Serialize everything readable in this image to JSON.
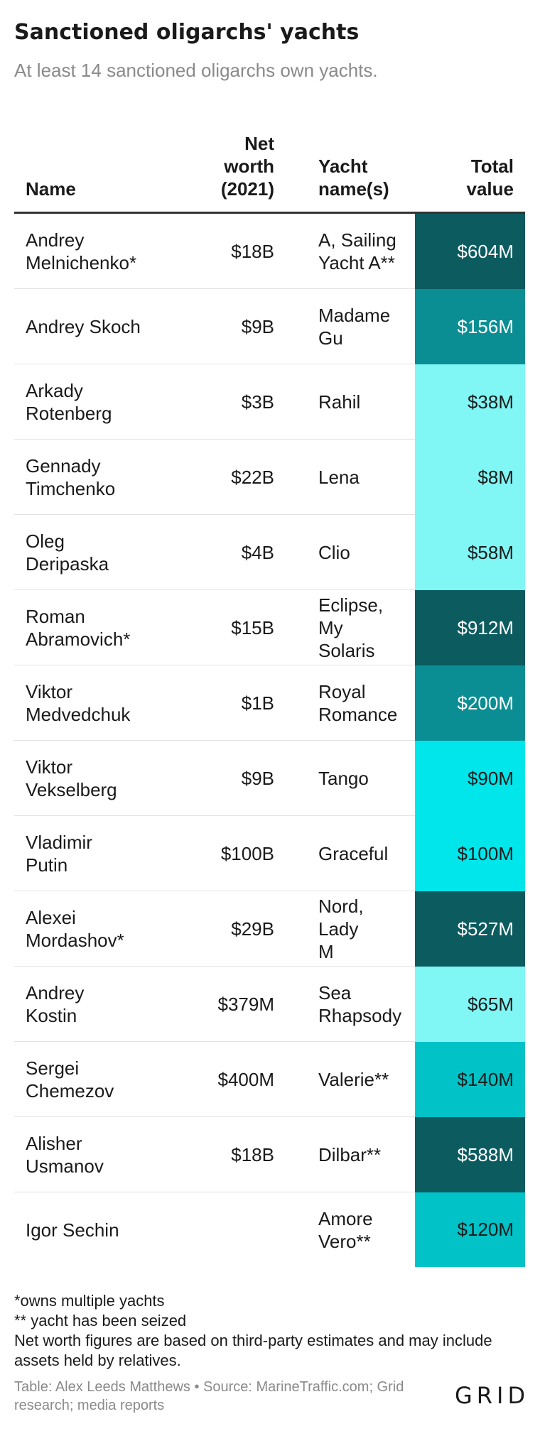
{
  "title": "Sanctioned oligarchs' yachts",
  "subtitle": "At least 14 sanctioned oligarchs own yachts.",
  "colors": {
    "tier_900_plus": "#0b5b5f",
    "tier_500": "#0b5b5f",
    "tier_200": "#0a8e93",
    "tier_150": "#0a8e93",
    "tier_100": "#00e6eb",
    "tier_90": "#00e6eb",
    "tier_low": "#80f6f5",
    "tier_120_140": "#00c2c7"
  },
  "chart_data": {
    "type": "table",
    "columns": [
      "Name",
      "Net worth (2021)",
      "Yacht name(s)",
      "Total value"
    ],
    "header_lines": {
      "name": [
        "Name"
      ],
      "worth": [
        "Net",
        "worth",
        "(2021)"
      ],
      "yacht": [
        "Yacht",
        "name(s)"
      ],
      "value": [
        "Total",
        "value"
      ]
    },
    "rows": [
      {
        "name": "Andrey Melnichenko*",
        "name_lines": [
          "Andrey",
          "Melnichenko*"
        ],
        "worth": "$18B",
        "yacht_lines": [
          "A, Sailing",
          "Yacht A**"
        ],
        "value": "$604M",
        "value_num": 604,
        "bg": "#0b5b5f",
        "fg": "#ffffff"
      },
      {
        "name": "Andrey Skoch",
        "name_lines": [
          "Andrey Skoch"
        ],
        "worth": "$9B",
        "yacht_lines": [
          "Madame",
          "Gu"
        ],
        "value": "$156M",
        "value_num": 156,
        "bg": "#0a8e93",
        "fg": "#ffffff"
      },
      {
        "name": "Arkady Rotenberg",
        "name_lines": [
          "Arkady",
          "Rotenberg"
        ],
        "worth": "$3B",
        "yacht_lines": [
          "Rahil"
        ],
        "value": "$38M",
        "value_num": 38,
        "bg": "#80f6f5",
        "fg": "#1a1a1a"
      },
      {
        "name": "Gennady Timchenko",
        "name_lines": [
          "Gennady",
          "Timchenko"
        ],
        "worth": "$22B",
        "yacht_lines": [
          "Lena"
        ],
        "value": "$8M",
        "value_num": 8,
        "bg": "#80f6f5",
        "fg": "#1a1a1a"
      },
      {
        "name": "Oleg Deripaska",
        "name_lines": [
          "Oleg",
          "Deripaska"
        ],
        "worth": "$4B",
        "yacht_lines": [
          "Clio"
        ],
        "value": "$58M",
        "value_num": 58,
        "bg": "#80f6f5",
        "fg": "#1a1a1a"
      },
      {
        "name": "Roman Abramovich*",
        "name_lines": [
          "Roman",
          "Abramovich*"
        ],
        "worth": "$15B",
        "yacht_lines": [
          "Eclipse,",
          "My Solaris"
        ],
        "value": "$912M",
        "value_num": 912,
        "bg": "#0b5b5f",
        "fg": "#ffffff"
      },
      {
        "name": "Viktor Medvedchuk",
        "name_lines": [
          "Viktor",
          "Medvedchuk"
        ],
        "worth": "$1B",
        "yacht_lines": [
          "Royal",
          "Romance"
        ],
        "value": "$200M",
        "value_num": 200,
        "bg": "#0a8e93",
        "fg": "#ffffff"
      },
      {
        "name": "Viktor Vekselberg",
        "name_lines": [
          "Viktor",
          "Vekselberg"
        ],
        "worth": "$9B",
        "yacht_lines": [
          "Tango"
        ],
        "value": "$90M",
        "value_num": 90,
        "bg": "#00e6eb",
        "fg": "#1a1a1a"
      },
      {
        "name": "Vladimir Putin",
        "name_lines": [
          "Vladimir",
          "Putin"
        ],
        "worth": "$100B",
        "yacht_lines": [
          "Graceful"
        ],
        "value": "$100M",
        "value_num": 100,
        "bg": "#00e6eb",
        "fg": "#1a1a1a"
      },
      {
        "name": "Alexei Mordashov*",
        "name_lines": [
          "Alexei",
          "Mordashov*"
        ],
        "worth": "$29B",
        "yacht_lines": [
          "Nord, Lady",
          "M"
        ],
        "value": "$527M",
        "value_num": 527,
        "bg": "#0b5b5f",
        "fg": "#ffffff"
      },
      {
        "name": "Andrey Kostin",
        "name_lines": [
          "Andrey",
          "Kostin"
        ],
        "worth": "$379M",
        "yacht_lines": [
          "Sea",
          "Rhapsody"
        ],
        "value": "$65M",
        "value_num": 65,
        "bg": "#80f6f5",
        "fg": "#1a1a1a"
      },
      {
        "name": "Sergei Chemezov",
        "name_lines": [
          "Sergei",
          "Chemezov"
        ],
        "worth": "$400M",
        "yacht_lines": [
          "Valerie**"
        ],
        "value": "$140M",
        "value_num": 140,
        "bg": "#00c2c7",
        "fg": "#1a1a1a"
      },
      {
        "name": "Alisher Usmanov",
        "name_lines": [
          "Alisher",
          "Usmanov"
        ],
        "worth": "$18B",
        "yacht_lines": [
          "Dilbar**"
        ],
        "value": "$588M",
        "value_num": 588,
        "bg": "#0b5b5f",
        "fg": "#ffffff"
      },
      {
        "name": "Igor Sechin",
        "name_lines": [
          "Igor Sechin"
        ],
        "worth": "",
        "yacht_lines": [
          "Amore",
          "Vero**"
        ],
        "value": "$120M",
        "value_num": 120,
        "bg": "#00c2c7",
        "fg": "#1a1a1a"
      }
    ]
  },
  "notes": [
    "*owns multiple yachts",
    "** yacht has been seized",
    "Net worth figures are based on third-party estimates and may include assets held by relatives."
  ],
  "source": "Table: Alex Leeds Matthews • Source: MarineTraffic.com; Grid research; media reports",
  "logo_text": "GRID"
}
